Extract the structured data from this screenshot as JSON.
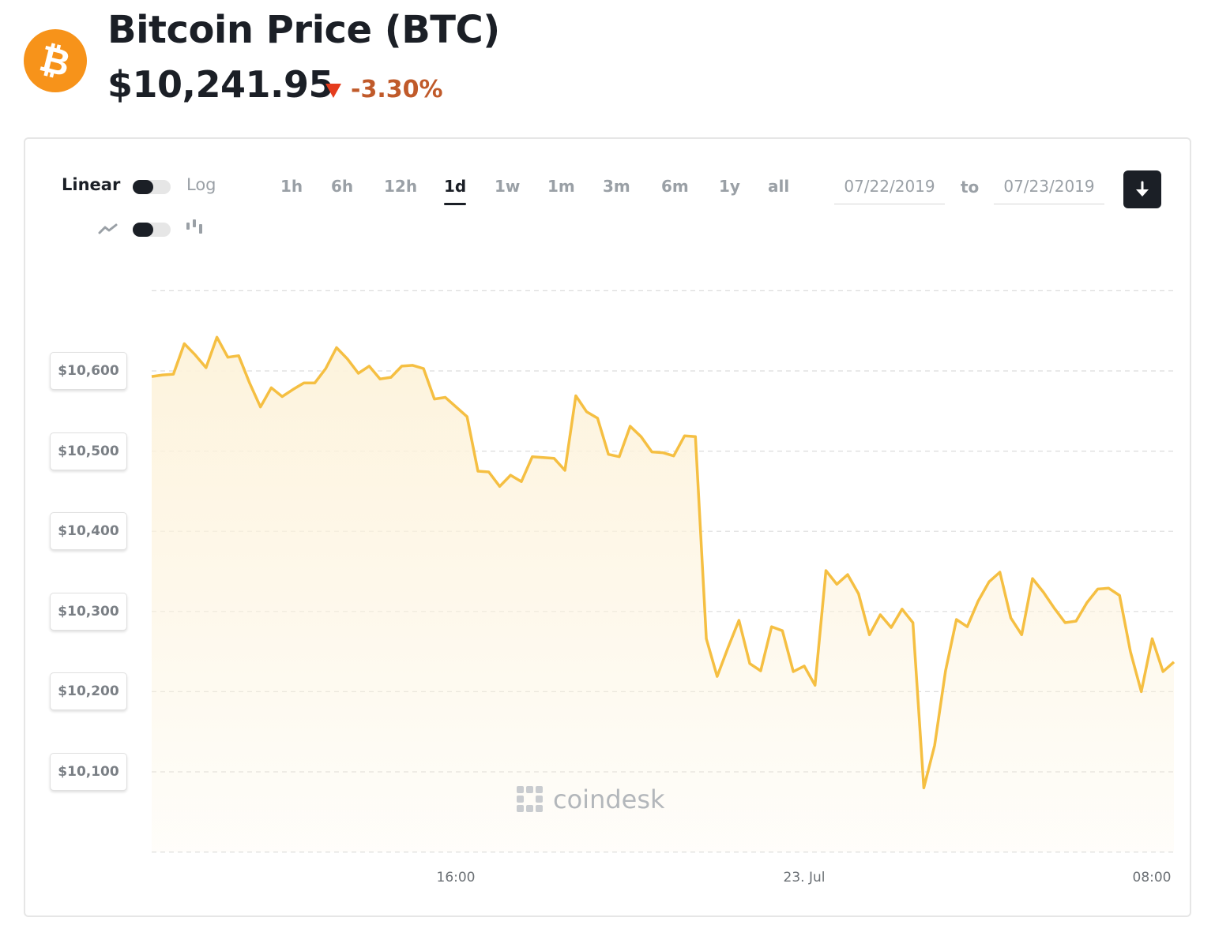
{
  "header": {
    "logo_symbol": "₿",
    "title": "Bitcoin Price",
    "ticker": "(BTC)",
    "price": "$10,241.95",
    "change": "-3.30%",
    "change_color": "#e53c1d",
    "brand_color": "#f7931a"
  },
  "controls": {
    "scale_left": "Linear",
    "scale_right": "Log",
    "chart_type_left_icon": "line-chart-icon",
    "chart_type_right_icon": "candlestick-icon",
    "ranges": [
      "1h",
      "6h",
      "12h",
      "1d",
      "1w",
      "1m",
      "3m",
      "6m",
      "1y",
      "all"
    ],
    "active_range": "1d",
    "date_from": "07/22/2019",
    "date_sep": "to",
    "date_to": "07/23/2019",
    "download_icon": "download-arrow-icon"
  },
  "watermark": "coindesk",
  "chart_data": {
    "type": "area",
    "title": "",
    "xlabel": "",
    "ylabel": "",
    "x_ticks": [
      "16:00",
      "23. Jul",
      "08:00"
    ],
    "y_ticks": [
      "$10,600",
      "$10,500",
      "$10,400",
      "$10,300",
      "$10,200",
      "$10,100"
    ],
    "y_tick_values": [
      10600,
      10500,
      10400,
      10300,
      10200,
      10100
    ],
    "ylim": [
      10000,
      10700
    ],
    "line_color": "#f5bf42",
    "fill_color": "#fdf3dc",
    "grid": true,
    "series": [
      {
        "values": [
          10593,
          10595,
          10596,
          10634,
          10620,
          10604,
          10642,
          10617,
          10619,
          10585,
          10555,
          10579,
          10568,
          10577,
          10585,
          10585,
          10603,
          10629,
          10615,
          10597,
          10606,
          10590,
          10592,
          10606,
          10607,
          10603,
          10565,
          10567,
          10555,
          10543,
          10475,
          10474,
          10456,
          10470,
          10462,
          10493,
          10492,
          10491,
          10476,
          10569,
          10549,
          10541,
          10496,
          10493,
          10531,
          10518,
          10499,
          10498,
          10494,
          10519,
          10518,
          10266,
          10219,
          10255,
          10289,
          10235,
          10226,
          10281,
          10276,
          10225,
          10232,
          10208,
          10351,
          10334,
          10346,
          10322,
          10271,
          10296,
          10280,
          10303,
          10286,
          10080,
          10133,
          10226,
          10290,
          10281,
          10313,
          10337,
          10349,
          10292,
          10271,
          10341,
          10324,
          10304,
          10286,
          10288,
          10311,
          10328,
          10329,
          10320,
          10250,
          10200,
          10266,
          10225,
          10237
        ]
      }
    ]
  }
}
